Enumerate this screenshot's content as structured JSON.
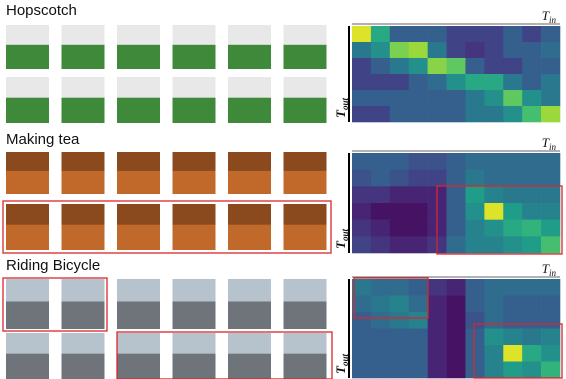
{
  "panels": [
    {
      "title": "Hopscotch",
      "heatmap": {
        "x_label": {
          "main": "T",
          "sub": "in"
        },
        "y_label": {
          "main": "T",
          "sub": "out"
        },
        "values": [
          [
            0.95,
            0.6,
            0.3,
            0.3,
            0.3,
            0.2,
            0.2,
            0.2,
            0.3,
            0.2,
            0.3
          ],
          [
            0.4,
            0.5,
            0.8,
            0.85,
            0.4,
            0.2,
            0.15,
            0.2,
            0.3,
            0.3,
            0.35
          ],
          [
            0.2,
            0.3,
            0.4,
            0.5,
            0.82,
            0.75,
            0.3,
            0.2,
            0.2,
            0.3,
            0.3
          ],
          [
            0.2,
            0.2,
            0.2,
            0.3,
            0.35,
            0.5,
            0.6,
            0.6,
            0.4,
            0.3,
            0.4
          ],
          [
            0.3,
            0.3,
            0.3,
            0.3,
            0.3,
            0.3,
            0.4,
            0.5,
            0.75,
            0.5,
            0.4
          ],
          [
            0.2,
            0.2,
            0.3,
            0.3,
            0.3,
            0.3,
            0.4,
            0.4,
            0.5,
            0.7,
            0.85
          ]
        ]
      }
    },
    {
      "title": "Making tea",
      "heatmap": {
        "x_label": {
          "main": "T",
          "sub": "in"
        },
        "y_label": {
          "main": "T",
          "sub": "out"
        },
        "values": [
          [
            0.3,
            0.3,
            0.3,
            0.25,
            0.25,
            0.3,
            0.35,
            0.35,
            0.35,
            0.35,
            0.35
          ],
          [
            0.25,
            0.3,
            0.25,
            0.2,
            0.2,
            0.3,
            0.4,
            0.35,
            0.35,
            0.35,
            0.35
          ],
          [
            0.15,
            0.15,
            0.1,
            0.1,
            0.1,
            0.3,
            0.55,
            0.45,
            0.4,
            0.4,
            0.4
          ],
          [
            0.1,
            0.05,
            0.05,
            0.05,
            0.1,
            0.3,
            0.5,
            0.95,
            0.55,
            0.45,
            0.45
          ],
          [
            0.15,
            0.1,
            0.05,
            0.05,
            0.1,
            0.3,
            0.45,
            0.5,
            0.6,
            0.65,
            0.55
          ],
          [
            0.2,
            0.15,
            0.1,
            0.1,
            0.15,
            0.35,
            0.45,
            0.45,
            0.5,
            0.55,
            0.7
          ]
        ]
      }
    },
    {
      "title": "Riding Bicycle",
      "heatmap": {
        "x_label": {
          "main": "T",
          "sub": "in"
        },
        "y_label": {
          "main": "T",
          "sub": "out"
        },
        "values": [
          [
            0.4,
            0.35,
            0.35,
            0.3,
            0.15,
            0.1,
            0.3,
            0.35,
            0.35,
            0.35,
            0.35
          ],
          [
            0.35,
            0.4,
            0.45,
            0.35,
            0.1,
            0.05,
            0.3,
            0.35,
            0.3,
            0.3,
            0.3
          ],
          [
            0.3,
            0.35,
            0.4,
            0.45,
            0.1,
            0.05,
            0.25,
            0.35,
            0.3,
            0.3,
            0.3
          ],
          [
            0.3,
            0.3,
            0.3,
            0.3,
            0.1,
            0.05,
            0.3,
            0.5,
            0.45,
            0.4,
            0.45
          ],
          [
            0.3,
            0.3,
            0.3,
            0.3,
            0.1,
            0.05,
            0.3,
            0.45,
            0.95,
            0.6,
            0.5
          ],
          [
            0.3,
            0.3,
            0.3,
            0.3,
            0.1,
            0.05,
            0.3,
            0.45,
            0.55,
            0.5,
            0.65
          ]
        ]
      }
    }
  ]
}
